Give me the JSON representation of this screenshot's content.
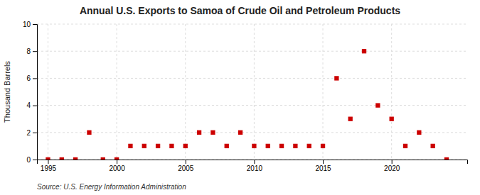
{
  "chart_data": {
    "type": "scatter",
    "title": "Annual U.S. Exports to Samoa of Crude Oil and Petroleum Products",
    "ylabel": "Thousand Barrels",
    "source": "Source: U.S. Energy Information Administration",
    "x": [
      1995,
      1996,
      1997,
      1998,
      1999,
      2000,
      2001,
      2002,
      2003,
      2004,
      2005,
      2006,
      2007,
      2008,
      2009,
      2010,
      2011,
      2012,
      2013,
      2014,
      2015,
      2016,
      2017,
      2018,
      2019,
      2020,
      2021,
      2022,
      2023,
      2024
    ],
    "values": [
      0,
      0,
      0,
      2,
      0,
      0,
      1,
      1,
      1,
      1,
      1,
      2,
      2,
      1,
      2,
      1,
      1,
      1,
      1,
      1,
      1,
      6,
      3,
      8,
      4,
      3,
      1,
      2,
      1,
      0
    ],
    "color": "#cc0000",
    "marker": "square",
    "xlim": [
      1994.2,
      2025.5
    ],
    "xticks": [
      1995,
      2000,
      2005,
      2010,
      2015,
      2020
    ],
    "ylim": [
      0,
      10
    ],
    "yticks": [
      0,
      2,
      4,
      6,
      8,
      10
    ],
    "grid": true
  }
}
